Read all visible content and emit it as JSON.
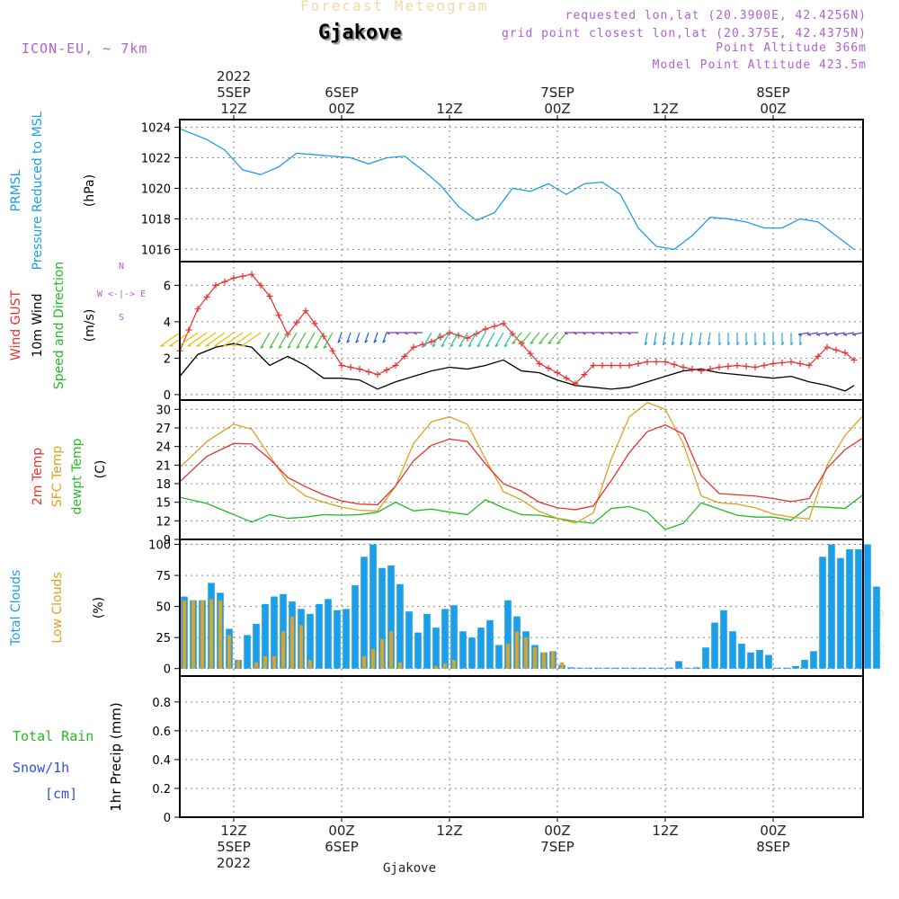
{
  "header": {
    "product_title": "Forecast Meteogram",
    "location": "Gjakove",
    "model": "ICON-EU, ~ 7km",
    "requested": "requested lon,lat (20.3900E, 42.4256N)",
    "grid_point": "grid point closest lon,lat (20.375E, 42.4375N)",
    "point_altitude": "Point Altitude 366m",
    "model_altitude": "Model Point Altitude 423.5m",
    "credit": "by Angel",
    "footer_location": "Gjakove"
  },
  "time_axis": {
    "top_labels": [
      {
        "h": 12,
        "lines": [
          "2022",
          "5SEP",
          "12Z"
        ]
      },
      {
        "h": 24,
        "lines": [
          "6SEP",
          "00Z"
        ]
      },
      {
        "h": 36,
        "lines": [
          "12Z"
        ]
      },
      {
        "h": 48,
        "lines": [
          "7SEP",
          "00Z"
        ]
      },
      {
        "h": 60,
        "lines": [
          "12Z"
        ]
      },
      {
        "h": 72,
        "lines": [
          "8SEP",
          "00Z"
        ]
      }
    ],
    "bottom_labels": [
      {
        "h": 12,
        "lines": [
          "12Z",
          "5SEP",
          "2022"
        ]
      },
      {
        "h": 24,
        "lines": [
          "00Z",
          "6SEP"
        ]
      },
      {
        "h": 36,
        "lines": [
          "12Z"
        ]
      },
      {
        "h": 48,
        "lines": [
          "00Z",
          "7SEP"
        ]
      },
      {
        "h": 60,
        "lines": [
          "12Z"
        ]
      },
      {
        "h": 72,
        "lines": [
          "00Z",
          "8SEP"
        ]
      }
    ],
    "start_hour": 6,
    "end_hour": 82
  },
  "panel_labels": {
    "pressure": {
      "lines": [
        {
          "text": "PRMSL",
          "color": "#1a9fe8"
        },
        {
          "text": "Pressure Reduced to MSL",
          "color": "#1a9fe8"
        }
      ],
      "unit": "(hPa)"
    },
    "wind": {
      "lines": [
        {
          "text": "Wind GUST",
          "color": "#e83030"
        },
        {
          "text": "10m Wind",
          "color": "#000000"
        },
        {
          "text": "Speed and Direction",
          "color": "#22bb22"
        }
      ],
      "unit": "(m/s)",
      "compass": [
        "N",
        "W <-|-> E",
        "S"
      ]
    },
    "temp": {
      "lines": [
        {
          "text": "2m Temp",
          "color": "#e83030"
        },
        {
          "text": "SFC Temp",
          "color": "#e0a020"
        },
        {
          "text": "dewpt Temp",
          "color": "#22bb22"
        }
      ],
      "unit": "(C)"
    },
    "clouds": {
      "lines": [
        {
          "text": "Total Clouds",
          "color": "#1a9fe8"
        },
        {
          "text": "Low Clouds",
          "color": "#e0a020"
        }
      ],
      "unit": "(%)"
    },
    "precip": {
      "lines": [
        {
          "text": "Total  Rain",
          "color": "#22bb22"
        },
        {
          "text": "Snow/1h",
          "color": "#3050e0"
        },
        {
          "text": "[cm]",
          "color": "#3050e0"
        }
      ],
      "unit": "1hr Precip (mm)"
    }
  },
  "colors": {
    "pressure": "#1a9fe8",
    "gust": "#e83030",
    "wind": "#000000",
    "temp": "#e83030",
    "sfc": "#e0a020",
    "dew": "#22bb22",
    "total_clouds": "#1a9fe8",
    "low_clouds": "#e0a020",
    "grid": "#888888"
  },
  "chart_data": [
    {
      "type": "line",
      "name": "pressure",
      "yticks": [
        1016,
        1018,
        1020,
        1022,
        1024
      ],
      "ylim": [
        1015.2,
        1024.5
      ],
      "x": [
        6,
        9,
        11,
        13,
        15,
        17,
        19,
        21,
        23,
        25,
        27,
        29,
        31,
        33,
        35,
        37,
        39,
        41,
        43,
        45,
        47,
        49,
        51,
        53,
        55,
        57,
        59,
        61,
        63,
        65,
        67,
        69,
        71,
        73,
        75,
        77,
        79,
        81
      ],
      "values": [
        1023.9,
        1023.2,
        1022.5,
        1021.2,
        1020.9,
        1021.4,
        1022.3,
        1022.2,
        1022.1,
        1022.0,
        1021.6,
        1022.0,
        1022.1,
        1021.2,
        1020.2,
        1018.8,
        1017.9,
        1018.4,
        1020.0,
        1019.8,
        1020.3,
        1019.6,
        1020.3,
        1020.4,
        1019.6,
        1017.4,
        1016.2,
        1016.0,
        1016.9,
        1018.1,
        1018.0,
        1017.8,
        1017.4,
        1017.4,
        1018.0,
        1017.8,
        1016.9,
        1016.0
      ]
    },
    {
      "type": "line",
      "name": "wind",
      "yticks": [
        0,
        2,
        4,
        6
      ],
      "ylim": [
        -0.3,
        7.3
      ],
      "x": [
        6,
        8,
        10,
        12,
        14,
        16,
        18,
        20,
        22,
        24,
        26,
        28,
        30,
        32,
        34,
        36,
        38,
        40,
        42,
        44,
        46,
        48,
        50,
        52,
        54,
        56,
        58,
        60,
        62,
        64,
        66,
        68,
        70,
        72,
        74,
        76,
        78,
        80,
        81
      ],
      "gust": [
        2.4,
        4.7,
        6.0,
        6.4,
        6.6,
        5.4,
        3.3,
        4.6,
        3.2,
        1.6,
        1.4,
        1.1,
        1.6,
        2.6,
        2.9,
        3.4,
        3.1,
        3.6,
        3.9,
        2.8,
        1.7,
        1.2,
        0.6,
        1.6,
        1.6,
        1.6,
        1.8,
        1.8,
        1.5,
        1.3,
        1.5,
        1.6,
        1.5,
        1.7,
        1.8,
        1.6,
        2.6,
        2.3,
        1.9
      ],
      "speed": [
        1.0,
        2.2,
        2.6,
        2.8,
        2.6,
        1.6,
        2.1,
        1.6,
        0.9,
        0.9,
        0.8,
        0.3,
        0.7,
        1.0,
        1.3,
        1.5,
        1.4,
        1.6,
        1.9,
        1.3,
        1.2,
        0.8,
        0.5,
        0.4,
        0.3,
        0.4,
        0.7,
        1.0,
        1.3,
        1.4,
        1.2,
        1.1,
        1.0,
        0.9,
        1.0,
        0.7,
        0.5,
        0.2,
        0.5
      ]
    },
    {
      "type": "line",
      "name": "temperature",
      "yticks": [
        9,
        12,
        15,
        18,
        21,
        24,
        27,
        30
      ],
      "ylim": [
        9,
        31.5
      ],
      "x": [
        6,
        9,
        12,
        14,
        16,
        18,
        20,
        22,
        24,
        26,
        28,
        30,
        32,
        34,
        36,
        38,
        40,
        42,
        44,
        46,
        48,
        50,
        52,
        54,
        56,
        58,
        60,
        62,
        64,
        66,
        68,
        70,
        72,
        74,
        76,
        78,
        80,
        82
      ],
      "t2m": [
        18.3,
        22.4,
        24.5,
        24.4,
        22.0,
        19.0,
        17.5,
        16.2,
        15.2,
        14.7,
        14.6,
        17.6,
        21.7,
        24.2,
        25.2,
        24.8,
        21.2,
        18.0,
        16.8,
        15.0,
        14.1,
        13.8,
        14.4,
        18.5,
        23.0,
        26.4,
        27.5,
        26.0,
        19.3,
        16.4,
        16.2,
        16.0,
        15.6,
        15.1,
        15.6,
        20.5,
        23.5,
        25.4
      ],
      "sfc": [
        20.6,
        24.8,
        27.6,
        26.8,
        22.5,
        18.2,
        16.0,
        15.0,
        14.2,
        13.7,
        13.6,
        17.6,
        24.5,
        28.0,
        28.8,
        27.6,
        22.0,
        16.7,
        15.4,
        13.5,
        12.4,
        11.6,
        13.3,
        22.0,
        28.8,
        31.1,
        30.0,
        24.5,
        16.0,
        14.9,
        14.7,
        14.1,
        13.1,
        12.6,
        12.3,
        21.0,
        25.8,
        29.0
      ],
      "dew": [
        15.8,
        14.8,
        13.0,
        11.8,
        13.0,
        12.4,
        12.6,
        13.0,
        12.9,
        13.0,
        13.4,
        15.0,
        13.6,
        13.9,
        13.4,
        13.0,
        15.4,
        14.1,
        13.0,
        12.9,
        12.4,
        11.9,
        11.6,
        14.0,
        14.3,
        13.4,
        10.6,
        11.6,
        14.9,
        13.9,
        12.9,
        12.6,
        12.6,
        12.1,
        14.3,
        14.2,
        14.0,
        16.2
      ]
    },
    {
      "type": "bar",
      "name": "clouds",
      "yticks": [
        0,
        25,
        50,
        75,
        100
      ],
      "ylim": [
        -6,
        104
      ],
      "start_hour": 6,
      "total": [
        58,
        55,
        55,
        69,
        61,
        32,
        7,
        27,
        36,
        52,
        58,
        60,
        54,
        48,
        44,
        52,
        56,
        47,
        48,
        67,
        90,
        100,
        81,
        83,
        68,
        46,
        29,
        44,
        33,
        48,
        51,
        30,
        25,
        33,
        39,
        19,
        55,
        42,
        30,
        19,
        13,
        14,
        3,
        1,
        0,
        0,
        0,
        0,
        0,
        0,
        0,
        0,
        0,
        0,
        0,
        6,
        0,
        1,
        17,
        37,
        47,
        30,
        20,
        13,
        15,
        11,
        0,
        0,
        2,
        7,
        14,
        90,
        100,
        89,
        96,
        96,
        100,
        66
      ],
      "low": [
        55,
        55,
        55,
        56,
        55,
        27,
        7,
        0,
        5,
        10,
        10,
        30,
        42,
        35,
        7,
        0,
        0,
        0,
        0,
        0,
        10,
        16,
        24,
        30,
        5,
        0,
        0,
        0,
        2,
        4,
        7,
        0,
        0,
        0,
        0,
        0,
        20,
        30,
        25,
        17,
        13,
        14,
        5,
        0,
        0,
        0,
        0,
        0,
        0,
        0,
        0,
        0,
        0,
        0,
        0,
        0,
        0,
        0,
        0,
        0,
        0,
        0,
        0,
        0,
        0,
        0,
        0,
        0,
        0,
        0,
        0,
        0,
        0,
        0,
        0,
        0,
        0,
        0
      ]
    },
    {
      "type": "bar",
      "name": "precip",
      "yticks": [
        "0",
        "0.2",
        "0.4",
        "0.6",
        "0.8"
      ],
      "ylim": [
        0,
        0.98
      ],
      "values": []
    }
  ]
}
